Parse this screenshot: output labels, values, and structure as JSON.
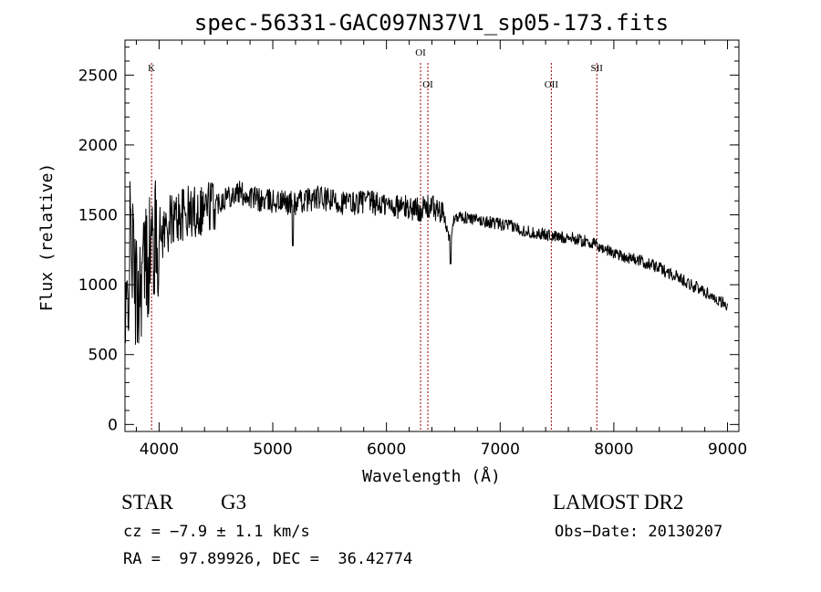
{
  "chart_data": {
    "type": "line",
    "title": "spec-56331-GAC097N37V1_sp05-173.fits",
    "xlabel": "Wavelength (Å)",
    "ylabel": "Flux (relative)",
    "xlim": [
      3700,
      9100
    ],
    "ylim": [
      -50,
      2750
    ],
    "xticks": [
      4000,
      5000,
      6000,
      7000,
      8000,
      9000
    ],
    "yticks": [
      0,
      500,
      1000,
      1500,
      2000,
      2500
    ],
    "x_tick_labels": [
      "4000",
      "5000",
      "6000",
      "7000",
      "8000",
      "9000"
    ],
    "y_tick_labels": [
      "0",
      "500",
      "1000",
      "1500",
      "2000",
      "2500"
    ],
    "grid": false,
    "legend": "none",
    "line_color": "#000000",
    "marker_color": "#990000",
    "series": [
      {
        "x": [
          3700,
          3750,
          3800,
          3850,
          3900,
          3950,
          4000,
          4050,
          4100,
          4150,
          4200,
          4300,
          4400,
          4500,
          4600,
          4700,
          4800,
          4900,
          5000,
          5100,
          5200,
          5300,
          5400,
          5500,
          5600,
          5700,
          5800,
          5900,
          6000,
          6100,
          6200,
          6300,
          6400,
          6500,
          6563,
          6600,
          6700,
          6800,
          6900,
          7000,
          7100,
          7200,
          7300,
          7400,
          7500,
          7600,
          7700,
          7800,
          7900,
          8000,
          8100,
          8200,
          8300,
          8400,
          8500,
          8600,
          8700,
          8800,
          8900,
          9000
        ],
        "y": [
          500,
          1400,
          900,
          1100,
          1200,
          1300,
          1350,
          1400,
          1450,
          1480,
          1500,
          1520,
          1560,
          1580,
          1640,
          1660,
          1630,
          1600,
          1600,
          1590,
          1580,
          1610,
          1620,
          1600,
          1590,
          1580,
          1600,
          1580,
          1570,
          1560,
          1550,
          1540,
          1560,
          1500,
          1300,
          1500,
          1480,
          1460,
          1450,
          1430,
          1420,
          1390,
          1370,
          1360,
          1340,
          1340,
          1320,
          1300,
          1260,
          1230,
          1200,
          1180,
          1150,
          1120,
          1080,
          1040,
          990,
          950,
          900,
          850
        ]
      }
    ],
    "annotations": [
      {
        "label": "K",
        "x": 3934
      },
      {
        "label": "OI",
        "x": 6300
      },
      {
        "label": "OI",
        "x": 6364
      },
      {
        "label": "OII",
        "x": 7450
      },
      {
        "label": "SII",
        "x": 7850
      }
    ]
  },
  "info": {
    "object_type": "STAR",
    "subclass": "G3",
    "survey": "LAMOST DR2",
    "cz": "cz = −7.9 ± 1.1 km/s",
    "obs_date": "Obs−Date: 20130207",
    "coords": "RA =  97.89926, DEC =  36.42774"
  }
}
